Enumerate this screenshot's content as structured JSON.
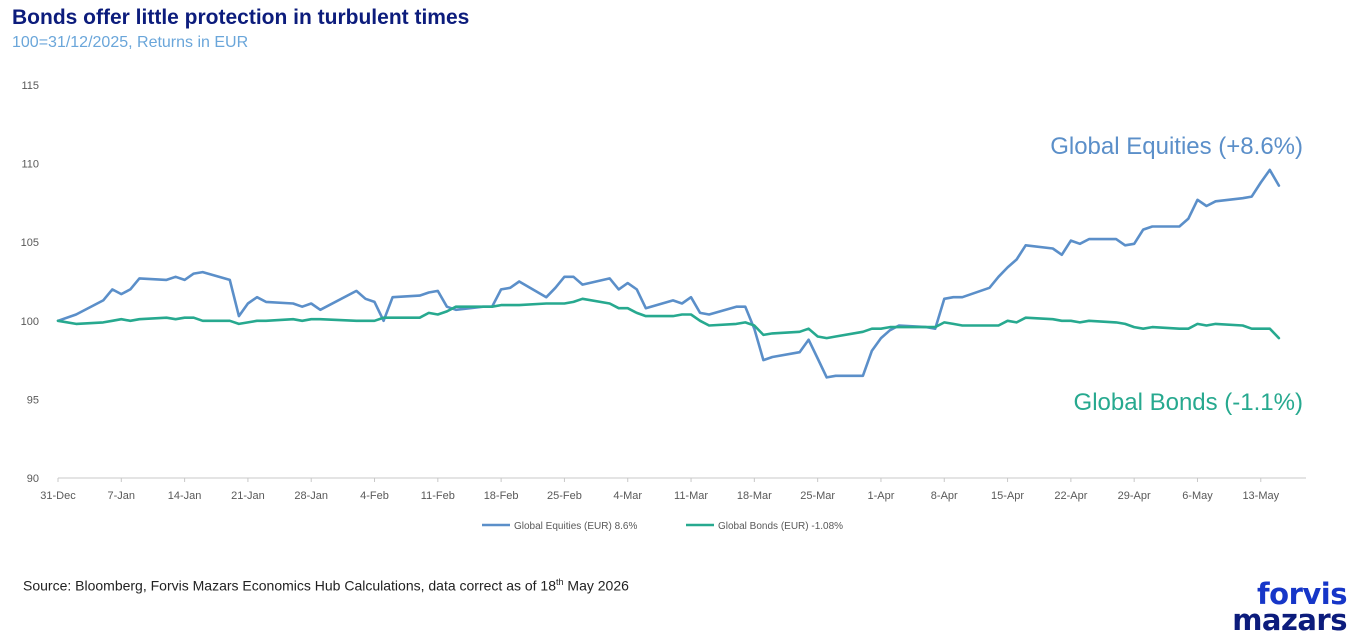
{
  "title": "Bonds offer little protection in turbulent times",
  "subtitle": "100=31/12/2025, Returns in EUR",
  "source": {
    "text": "Source: Bloomberg, Forvis Mazars Economics Hub Calculations, data correct as of 18",
    "sup": "th",
    "tail": " May 2026"
  },
  "logo": {
    "line1": "forvis",
    "line2": "mazars"
  },
  "chart_data": {
    "type": "line",
    "x_ticks": [
      "31-Dec",
      "7-Jan",
      "14-Jan",
      "21-Jan",
      "28-Jan",
      "4-Feb",
      "11-Feb",
      "18-Feb",
      "25-Feb",
      "4-Mar",
      "11-Mar",
      "18-Mar",
      "25-Mar",
      "1-Apr",
      "8-Apr",
      "15-Apr",
      "22-Apr",
      "29-Apr",
      "6-May",
      "13-May"
    ],
    "y_ticks": [
      90,
      95,
      100,
      105,
      110,
      115
    ],
    "ylim": [
      90,
      115
    ],
    "x_start": "2025-12-31",
    "x_end": "2026-05-18",
    "grid": false,
    "legend_position": "bottom",
    "annotations": [
      {
        "text": "Global Equities (+8.6%)",
        "series": 0
      },
      {
        "text": "Global Bonds (-1.1%)",
        "series": 1
      }
    ],
    "series": [
      {
        "name": "Global Equities (EUR) 8.6%",
        "color": "#5b8fc9",
        "points": [
          [
            "2025-12-31",
            100.0
          ],
          [
            "2026-01-02",
            100.4
          ],
          [
            "2026-01-05",
            101.3
          ],
          [
            "2026-01-06",
            102.0
          ],
          [
            "2026-01-07",
            101.7
          ],
          [
            "2026-01-08",
            102.0
          ],
          [
            "2026-01-09",
            102.7
          ],
          [
            "2026-01-12",
            102.6
          ],
          [
            "2026-01-13",
            102.8
          ],
          [
            "2026-01-14",
            102.6
          ],
          [
            "2026-01-15",
            103.0
          ],
          [
            "2026-01-16",
            103.1
          ],
          [
            "2026-01-19",
            102.6
          ],
          [
            "2026-01-20",
            100.3
          ],
          [
            "2026-01-21",
            101.1
          ],
          [
            "2026-01-22",
            101.5
          ],
          [
            "2026-01-23",
            101.2
          ],
          [
            "2026-01-26",
            101.1
          ],
          [
            "2026-01-27",
            100.9
          ],
          [
            "2026-01-28",
            101.1
          ],
          [
            "2026-01-29",
            100.7
          ],
          [
            "2026-02-02",
            101.9
          ],
          [
            "2026-02-03",
            101.4
          ],
          [
            "2026-02-04",
            101.2
          ],
          [
            "2026-02-05",
            100.0
          ],
          [
            "2026-02-06",
            101.5
          ],
          [
            "2026-02-09",
            101.6
          ],
          [
            "2026-02-10",
            101.8
          ],
          [
            "2026-02-11",
            101.9
          ],
          [
            "2026-02-12",
            100.9
          ],
          [
            "2026-02-13",
            100.7
          ],
          [
            "2026-02-16",
            100.9
          ],
          [
            "2026-02-17",
            100.9
          ],
          [
            "2026-02-18",
            102.0
          ],
          [
            "2026-02-19",
            102.1
          ],
          [
            "2026-02-20",
            102.5
          ],
          [
            "2026-02-23",
            101.5
          ],
          [
            "2026-02-24",
            102.1
          ],
          [
            "2026-02-25",
            102.8
          ],
          [
            "2026-02-26",
            102.8
          ],
          [
            "2026-02-27",
            102.3
          ],
          [
            "2026-03-02",
            102.7
          ],
          [
            "2026-03-03",
            102.0
          ],
          [
            "2026-03-04",
            102.4
          ],
          [
            "2026-03-05",
            102.0
          ],
          [
            "2026-03-06",
            100.8
          ],
          [
            "2026-03-09",
            101.3
          ],
          [
            "2026-03-10",
            101.1
          ],
          [
            "2026-03-11",
            101.5
          ],
          [
            "2026-03-12",
            100.5
          ],
          [
            "2026-03-13",
            100.4
          ],
          [
            "2026-03-16",
            100.9
          ],
          [
            "2026-03-17",
            100.9
          ],
          [
            "2026-03-18",
            99.5
          ],
          [
            "2026-03-19",
            97.5
          ],
          [
            "2026-03-20",
            97.7
          ],
          [
            "2026-03-23",
            98.0
          ],
          [
            "2026-03-24",
            98.8
          ],
          [
            "2026-03-25",
            97.6
          ],
          [
            "2026-03-26",
            96.4
          ],
          [
            "2026-03-27",
            96.5
          ],
          [
            "2026-03-30",
            96.5
          ],
          [
            "2026-03-31",
            98.1
          ],
          [
            "2026-04-01",
            98.9
          ],
          [
            "2026-04-02",
            99.4
          ],
          [
            "2026-04-03",
            99.7
          ],
          [
            "2026-04-06",
            99.6
          ],
          [
            "2026-04-07",
            99.5
          ],
          [
            "2026-04-08",
            101.4
          ],
          [
            "2026-04-09",
            101.5
          ],
          [
            "2026-04-10",
            101.5
          ],
          [
            "2026-04-13",
            102.1
          ],
          [
            "2026-04-14",
            102.8
          ],
          [
            "2026-04-15",
            103.4
          ],
          [
            "2026-04-16",
            103.9
          ],
          [
            "2026-04-17",
            104.8
          ],
          [
            "2026-04-20",
            104.6
          ],
          [
            "2026-04-21",
            104.2
          ],
          [
            "2026-04-22",
            105.1
          ],
          [
            "2026-04-23",
            104.9
          ],
          [
            "2026-04-24",
            105.2
          ],
          [
            "2026-04-27",
            105.2
          ],
          [
            "2026-04-28",
            104.8
          ],
          [
            "2026-04-29",
            104.9
          ],
          [
            "2026-04-30",
            105.8
          ],
          [
            "2026-05-01",
            106.0
          ],
          [
            "2026-05-04",
            106.0
          ],
          [
            "2026-05-05",
            106.5
          ],
          [
            "2026-05-06",
            107.7
          ],
          [
            "2026-05-07",
            107.3
          ],
          [
            "2026-05-08",
            107.6
          ],
          [
            "2026-05-11",
            107.8
          ],
          [
            "2026-05-12",
            107.9
          ],
          [
            "2026-05-13",
            108.8
          ],
          [
            "2026-05-14",
            109.6
          ],
          [
            "2026-05-15",
            108.6
          ]
        ]
      },
      {
        "name": "Global Bonds (EUR) -1.08%",
        "color": "#27a98f",
        "points": [
          [
            "2025-12-31",
            100.0
          ],
          [
            "2026-01-02",
            99.8
          ],
          [
            "2026-01-05",
            99.9
          ],
          [
            "2026-01-06",
            100.0
          ],
          [
            "2026-01-07",
            100.1
          ],
          [
            "2026-01-08",
            100.0
          ],
          [
            "2026-01-09",
            100.1
          ],
          [
            "2026-01-12",
            100.2
          ],
          [
            "2026-01-13",
            100.1
          ],
          [
            "2026-01-14",
            100.2
          ],
          [
            "2026-01-15",
            100.2
          ],
          [
            "2026-01-16",
            100.0
          ],
          [
            "2026-01-19",
            100.0
          ],
          [
            "2026-01-20",
            99.8
          ],
          [
            "2026-01-21",
            99.9
          ],
          [
            "2026-01-22",
            100.0
          ],
          [
            "2026-01-23",
            100.0
          ],
          [
            "2026-01-26",
            100.1
          ],
          [
            "2026-01-27",
            100.0
          ],
          [
            "2026-01-28",
            100.1
          ],
          [
            "2026-01-29",
            100.1
          ],
          [
            "2026-02-02",
            100.0
          ],
          [
            "2026-02-03",
            100.0
          ],
          [
            "2026-02-04",
            100.0
          ],
          [
            "2026-02-05",
            100.2
          ],
          [
            "2026-02-06",
            100.2
          ],
          [
            "2026-02-09",
            100.2
          ],
          [
            "2026-02-10",
            100.5
          ],
          [
            "2026-02-11",
            100.4
          ],
          [
            "2026-02-12",
            100.6
          ],
          [
            "2026-02-13",
            100.9
          ],
          [
            "2026-02-16",
            100.9
          ],
          [
            "2026-02-17",
            100.9
          ],
          [
            "2026-02-18",
            101.0
          ],
          [
            "2026-02-19",
            101.0
          ],
          [
            "2026-02-20",
            101.0
          ],
          [
            "2026-02-23",
            101.1
          ],
          [
            "2026-02-24",
            101.1
          ],
          [
            "2026-02-25",
            101.1
          ],
          [
            "2026-02-26",
            101.2
          ],
          [
            "2026-02-27",
            101.4
          ],
          [
            "2026-03-02",
            101.1
          ],
          [
            "2026-03-03",
            100.8
          ],
          [
            "2026-03-04",
            100.8
          ],
          [
            "2026-03-05",
            100.5
          ],
          [
            "2026-03-06",
            100.3
          ],
          [
            "2026-03-09",
            100.3
          ],
          [
            "2026-03-10",
            100.4
          ],
          [
            "2026-03-11",
            100.4
          ],
          [
            "2026-03-12",
            100.0
          ],
          [
            "2026-03-13",
            99.7
          ],
          [
            "2026-03-16",
            99.8
          ],
          [
            "2026-03-17",
            99.9
          ],
          [
            "2026-03-18",
            99.7
          ],
          [
            "2026-03-19",
            99.1
          ],
          [
            "2026-03-20",
            99.2
          ],
          [
            "2026-03-23",
            99.3
          ],
          [
            "2026-03-24",
            99.5
          ],
          [
            "2026-03-25",
            99.0
          ],
          [
            "2026-03-26",
            98.9
          ],
          [
            "2026-03-27",
            99.0
          ],
          [
            "2026-03-30",
            99.3
          ],
          [
            "2026-03-31",
            99.5
          ],
          [
            "2026-04-01",
            99.5
          ],
          [
            "2026-04-02",
            99.6
          ],
          [
            "2026-04-03",
            99.6
          ],
          [
            "2026-04-06",
            99.6
          ],
          [
            "2026-04-07",
            99.6
          ],
          [
            "2026-04-08",
            99.9
          ],
          [
            "2026-04-09",
            99.8
          ],
          [
            "2026-04-10",
            99.7
          ],
          [
            "2026-04-13",
            99.7
          ],
          [
            "2026-04-14",
            99.7
          ],
          [
            "2026-04-15",
            100.0
          ],
          [
            "2026-04-16",
            99.9
          ],
          [
            "2026-04-17",
            100.2
          ],
          [
            "2026-04-20",
            100.1
          ],
          [
            "2026-04-21",
            100.0
          ],
          [
            "2026-04-22",
            100.0
          ],
          [
            "2026-04-23",
            99.9
          ],
          [
            "2026-04-24",
            100.0
          ],
          [
            "2026-04-27",
            99.9
          ],
          [
            "2026-04-28",
            99.8
          ],
          [
            "2026-04-29",
            99.6
          ],
          [
            "2026-04-30",
            99.5
          ],
          [
            "2026-05-01",
            99.6
          ],
          [
            "2026-05-04",
            99.5
          ],
          [
            "2026-05-05",
            99.5
          ],
          [
            "2026-05-06",
            99.8
          ],
          [
            "2026-05-07",
            99.7
          ],
          [
            "2026-05-08",
            99.8
          ],
          [
            "2026-05-11",
            99.7
          ],
          [
            "2026-05-12",
            99.5
          ],
          [
            "2026-05-13",
            99.5
          ],
          [
            "2026-05-14",
            99.5
          ],
          [
            "2026-05-15",
            98.9
          ]
        ]
      }
    ]
  }
}
